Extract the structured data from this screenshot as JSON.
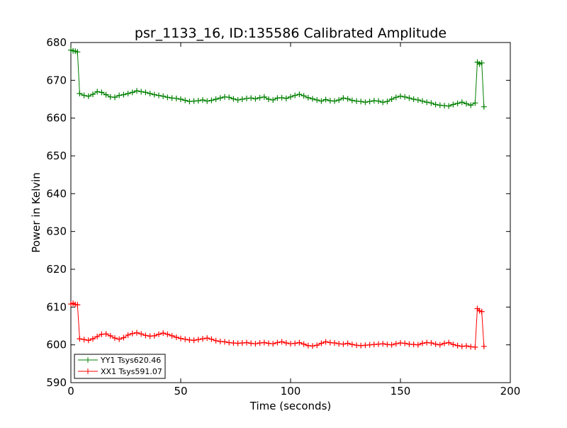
{
  "chart_data": {
    "type": "line",
    "title": "psr_1133_16, ID:135586 Calibrated Amplitude",
    "xlabel": "Time (seconds)",
    "ylabel": "Power in Kelvin",
    "xlim": [
      0,
      200
    ],
    "ylim": [
      590,
      680
    ],
    "xticks": [
      "0",
      "50",
      "100",
      "150",
      "200"
    ],
    "yticks": [
      "590",
      "600",
      "610",
      "620",
      "630",
      "640",
      "650",
      "660",
      "670",
      "680"
    ],
    "grid": false,
    "legend_position": "lower-left",
    "marker": "+",
    "series": [
      {
        "name": "YY1 Tsys620.46",
        "color": "#008000",
        "x": [
          0,
          1,
          2,
          3,
          4,
          6,
          8,
          10,
          12,
          14,
          16,
          18,
          20,
          22,
          24,
          26,
          28,
          30,
          32,
          34,
          36,
          38,
          40,
          42,
          44,
          46,
          48,
          50,
          52,
          54,
          56,
          58,
          60,
          62,
          64,
          66,
          68,
          70,
          72,
          74,
          76,
          78,
          80,
          82,
          84,
          86,
          88,
          90,
          92,
          94,
          96,
          98,
          100,
          102,
          104,
          106,
          108,
          110,
          112,
          114,
          116,
          118,
          120,
          122,
          124,
          126,
          128,
          130,
          132,
          134,
          136,
          138,
          140,
          142,
          144,
          146,
          148,
          150,
          152,
          154,
          156,
          158,
          160,
          162,
          164,
          166,
          168,
          170,
          172,
          174,
          176,
          178,
          180,
          182,
          184,
          185,
          186,
          187,
          188
        ],
        "y": [
          678,
          677.8,
          677.7,
          677.5,
          666.5,
          666,
          665.8,
          666.3,
          667,
          666.8,
          666.2,
          665.6,
          665.5,
          666,
          666.2,
          666.5,
          666.8,
          667.2,
          667,
          666.8,
          666.5,
          666.2,
          666,
          665.8,
          665.5,
          665.3,
          665.2,
          665,
          664.7,
          664.4,
          664.5,
          664.6,
          664.8,
          664.5,
          664.7,
          665,
          665.3,
          665.6,
          665.5,
          665.1,
          664.8,
          665,
          665.2,
          665.3,
          665.1,
          665.4,
          665.6,
          665,
          664.8,
          665.3,
          665.4,
          665.2,
          665.6,
          666,
          666.3,
          665.9,
          665.4,
          665.1,
          664.8,
          664.5,
          664.9,
          664.6,
          664.5,
          664.8,
          665.3,
          665.1,
          664.7,
          664.5,
          664.4,
          664.2,
          664.4,
          664.6,
          664.5,
          664.2,
          664.4,
          665,
          665.5,
          665.8,
          665.6,
          665.3,
          665,
          664.8,
          664.5,
          664.2,
          664,
          663.6,
          663.4,
          663.3,
          663.2,
          663.6,
          663.9,
          664.2,
          663.8,
          663.4,
          664,
          674.8,
          674.3,
          674.6,
          663
        ]
      },
      {
        "name": "XX1 Tsys591.07",
        "color": "#ff0000",
        "x": [
          0,
          1,
          2,
          3,
          4,
          6,
          8,
          10,
          12,
          14,
          16,
          18,
          20,
          22,
          24,
          26,
          28,
          30,
          32,
          34,
          36,
          38,
          40,
          42,
          44,
          46,
          48,
          50,
          52,
          54,
          56,
          58,
          60,
          62,
          64,
          66,
          68,
          70,
          72,
          74,
          76,
          78,
          80,
          82,
          84,
          86,
          88,
          90,
          92,
          94,
          96,
          98,
          100,
          102,
          104,
          106,
          108,
          110,
          112,
          114,
          116,
          118,
          120,
          122,
          124,
          126,
          128,
          130,
          132,
          134,
          136,
          138,
          140,
          142,
          144,
          146,
          148,
          150,
          152,
          154,
          156,
          158,
          160,
          162,
          164,
          166,
          168,
          170,
          172,
          174,
          176,
          178,
          180,
          182,
          184,
          185,
          186,
          187,
          188
        ],
        "y": [
          610.8,
          611,
          610.7,
          610.6,
          601.6,
          601.4,
          601.2,
          601.6,
          602.2,
          602.8,
          602.9,
          602.4,
          601.8,
          601.5,
          601.9,
          602.6,
          603,
          603.2,
          602.9,
          602.5,
          602.3,
          602.4,
          602.8,
          603.1,
          602.8,
          602.4,
          602,
          601.7,
          601.5,
          601.3,
          601.2,
          601.4,
          601.6,
          601.8,
          601.5,
          601.1,
          600.9,
          600.8,
          600.6,
          600.5,
          600.4,
          600.5,
          600.6,
          600.4,
          600.3,
          600.5,
          600.6,
          600.4,
          600.3,
          600.6,
          600.8,
          600.5,
          600.3,
          600.4,
          600.6,
          600.2,
          599.8,
          599.7,
          599.9,
          600.4,
          600.8,
          600.6,
          600.5,
          600.3,
          600.2,
          600.4,
          600.1,
          599.9,
          599.8,
          599.9,
          600,
          600.1,
          600.2,
          600.3,
          600.1,
          600,
          600.3,
          600.5,
          600.4,
          600.2,
          600.1,
          600,
          600.4,
          600.6,
          600.5,
          600.2,
          600,
          600.4,
          600.6,
          600.1,
          599.8,
          599.6,
          599.7,
          599.5,
          599.4,
          609.6,
          609,
          608.8,
          599.6
        ]
      }
    ]
  }
}
